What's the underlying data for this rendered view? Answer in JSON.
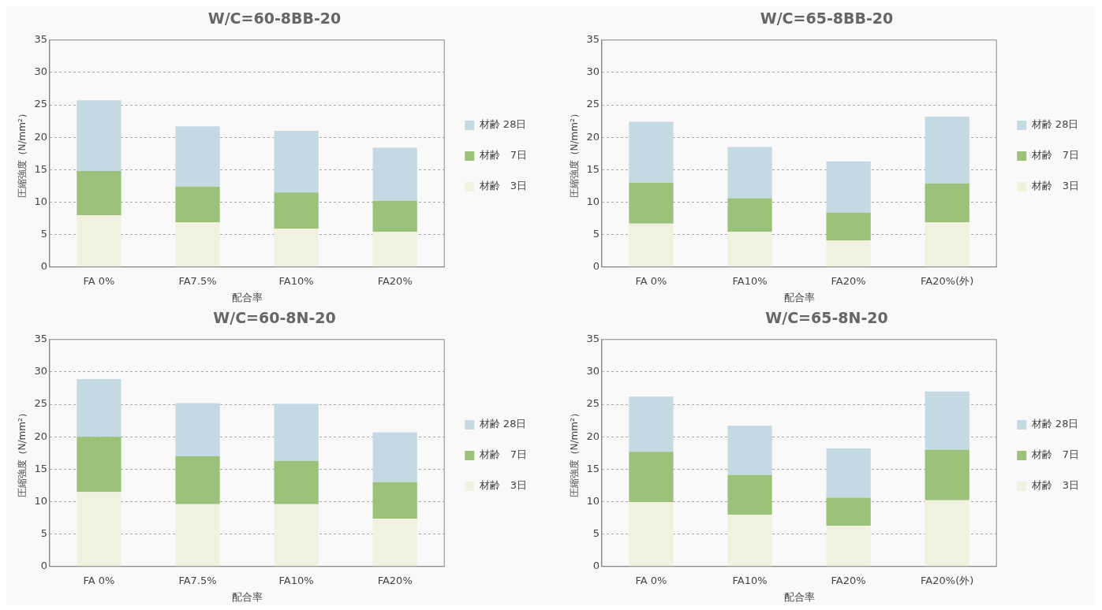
{
  "chart_data": [
    {
      "type": "bar",
      "title": "W/C=60-8BB-20",
      "xlabel": "配合率",
      "ylabel": "圧縮強度（N/mm²）",
      "categories": [
        "FA 0%",
        "FA7.5%",
        "FA10%",
        "FA20%"
      ],
      "stacked": true,
      "ylim": [
        0,
        35
      ],
      "yticks": [
        0,
        5,
        10,
        15,
        20,
        25,
        30,
        35
      ],
      "grid": "y",
      "legend": "right",
      "series": [
        {
          "name": "材齢　3日",
          "color": "#f0f2df",
          "values": [
            8.0,
            6.9,
            5.9,
            5.4
          ]
        },
        {
          "name": "材齢　7日",
          "color": "#9bc17a",
          "values": [
            6.8,
            5.5,
            5.6,
            4.8
          ]
        },
        {
          "name": "材齢 28日",
          "color": "#c5d9e3",
          "values": [
            10.9,
            9.3,
            9.5,
            8.2
          ]
        }
      ]
    },
    {
      "type": "bar",
      "title": "W/C=65-8BB-20",
      "xlabel": "配合率",
      "ylabel": "圧縮強度（N/mm²）",
      "categories": [
        "FA 0%",
        "FA10%",
        "FA20%",
        "FA20%(外)"
      ],
      "stacked": true,
      "ylim": [
        0,
        35
      ],
      "yticks": [
        0,
        5,
        10,
        15,
        20,
        25,
        30,
        35
      ],
      "grid": "y",
      "legend": "right",
      "series": [
        {
          "name": "材齢　3日",
          "color": "#f0f2df",
          "values": [
            6.7,
            5.4,
            4.1,
            6.9
          ]
        },
        {
          "name": "材齢　7日",
          "color": "#9bc17a",
          "values": [
            6.3,
            5.2,
            4.3,
            6.0
          ]
        },
        {
          "name": "材齢 28日",
          "color": "#c5d9e3",
          "values": [
            9.4,
            7.9,
            7.9,
            10.3
          ]
        }
      ]
    },
    {
      "type": "bar",
      "title": "W/C=60-8N-20",
      "xlabel": "配合率",
      "ylabel": "圧縮強度（N/mm²）",
      "categories": [
        "FA 0%",
        "FA7.5%",
        "FA10%",
        "FA20%"
      ],
      "stacked": true,
      "ylim": [
        0,
        35
      ],
      "yticks": [
        0,
        5,
        10,
        15,
        20,
        25,
        30,
        35
      ],
      "grid": "y",
      "legend": "right",
      "series": [
        {
          "name": "材齢　3日",
          "color": "#f0f2df",
          "values": [
            11.5,
            9.6,
            9.6,
            7.4
          ]
        },
        {
          "name": "材齢　7日",
          "color": "#9bc17a",
          "values": [
            8.5,
            7.4,
            6.7,
            5.6
          ]
        },
        {
          "name": "材齢 28日",
          "color": "#c5d9e3",
          "values": [
            8.9,
            8.2,
            8.8,
            7.7
          ]
        }
      ]
    },
    {
      "type": "bar",
      "title": "W/C=65-8N-20",
      "xlabel": "配合率",
      "ylabel": "圧縮強度（N/mm²）",
      "categories": [
        "FA 0%",
        "FA10%",
        "FA20%",
        "FA20%(外)"
      ],
      "stacked": true,
      "ylim": [
        0,
        35
      ],
      "yticks": [
        0,
        5,
        10,
        15,
        20,
        25,
        30,
        35
      ],
      "grid": "y",
      "legend": "right",
      "series": [
        {
          "name": "材齢　3日",
          "color": "#f0f2df",
          "values": [
            9.9,
            8.0,
            6.3,
            10.2
          ]
        },
        {
          "name": "材齢　7日",
          "color": "#9bc17a",
          "values": [
            7.8,
            6.1,
            4.3,
            7.8
          ]
        },
        {
          "name": "材齢 28日",
          "color": "#c5d9e3",
          "values": [
            8.5,
            7.6,
            7.6,
            9.0
          ]
        }
      ]
    }
  ]
}
